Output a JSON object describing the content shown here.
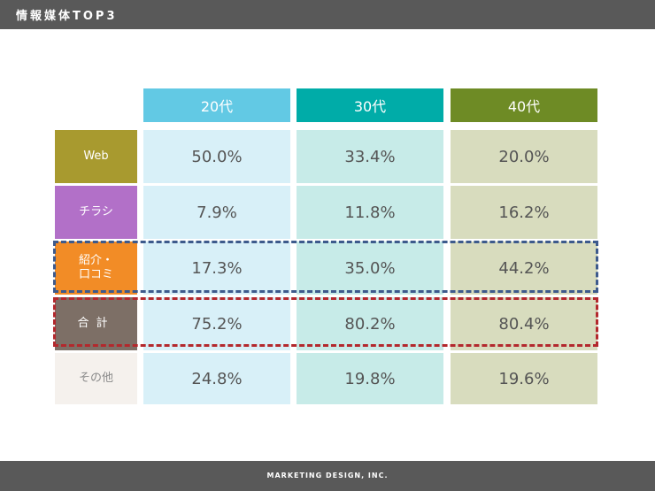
{
  "header": {
    "title": "情報媒体TOP3"
  },
  "footer": {
    "company": "MARKETING DESIGN, INC."
  },
  "table": {
    "columns": [
      "20代",
      "30代",
      "40代"
    ],
    "rows": [
      {
        "label": "Web",
        "values": [
          "50.0%",
          "33.4%",
          "20.0%"
        ]
      },
      {
        "label": "チラシ",
        "values": [
          "7.9%",
          "11.8%",
          "16.2%"
        ]
      },
      {
        "label": "紹介・\n口コミ",
        "values": [
          "17.3%",
          "35.0%",
          "44.2%"
        ]
      },
      {
        "label": "合計",
        "values": [
          "75.2%",
          "80.2%",
          "80.4%"
        ]
      },
      {
        "label": "その他",
        "values": [
          "24.8%",
          "19.8%",
          "19.6%"
        ]
      }
    ]
  },
  "colors": {
    "col_20s": "#62c9e4",
    "col_30s": "#00aca8",
    "col_40s": "#6e8b25",
    "web": "#a89a2f",
    "flyer": "#b270c8",
    "referral": "#f28c26",
    "total": "#7d6f66",
    "highlight_blue": "#3d5a8c",
    "highlight_red": "#b3282d"
  }
}
